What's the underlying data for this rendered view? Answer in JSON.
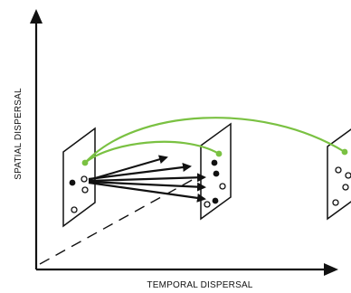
{
  "labels": {
    "x_axis": "TEMPORAL DISPERSAL",
    "y_axis": "SPATIAL DISPERSAL"
  },
  "colors": {
    "axis": "#111111",
    "green_link": "#7ac142",
    "panel_fill": "#ffffff",
    "panel_stroke": "#111111",
    "dot_filled": "#111111"
  }
}
